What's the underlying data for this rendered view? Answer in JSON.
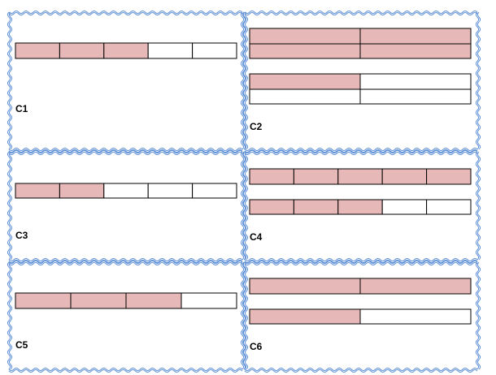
{
  "cards": [
    {
      "label": "C1"
    },
    {
      "label": "C2"
    },
    {
      "label": "C3"
    },
    {
      "label": "C4"
    },
    {
      "label": "C5"
    },
    {
      "label": "C6"
    }
  ]
}
